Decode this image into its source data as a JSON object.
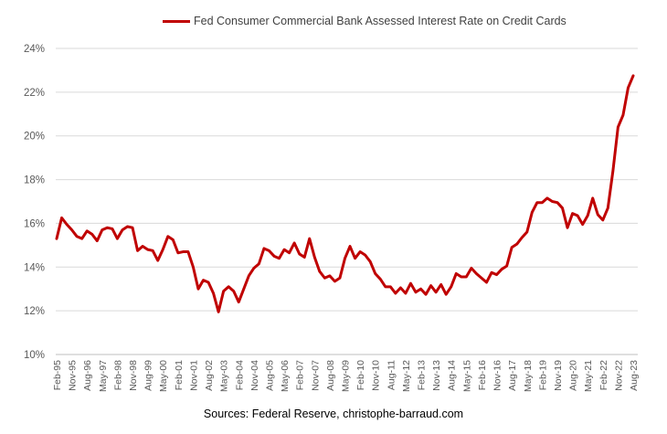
{
  "chart_data": {
    "type": "line",
    "title": "",
    "xlabel": "",
    "ylabel": "",
    "source": "Sources: Federal Reserve, christophe-barraud.com",
    "ylim": [
      10,
      24
    ],
    "y_ticks": [
      "10%",
      "12%",
      "14%",
      "16%",
      "18%",
      "20%",
      "22%",
      "24%"
    ],
    "y_tick_values": [
      10,
      12,
      14,
      16,
      18,
      20,
      22,
      24
    ],
    "x_tick_labels": [
      "Feb-95",
      "Nov-95",
      "Aug-96",
      "May-97",
      "Feb-98",
      "Nov-98",
      "Aug-99",
      "May-00",
      "Feb-01",
      "Nov-01",
      "Aug-02",
      "May-03",
      "Feb-04",
      "Nov-04",
      "Aug-05",
      "May-06",
      "Feb-07",
      "Nov-07",
      "Aug-08",
      "May-09",
      "Feb-10",
      "Nov-10",
      "Aug-11",
      "May-12",
      "Feb-13",
      "Nov-13",
      "Aug-14",
      "May-15",
      "Feb-16",
      "Nov-16",
      "Aug-17",
      "May-18",
      "Feb-19",
      "Nov-19",
      "Aug-20",
      "May-21",
      "Feb-22",
      "Nov-22",
      "Aug-23"
    ],
    "colors": {
      "series": "#C00000",
      "grid": "#d9d9d9",
      "axis": "#bfbfbf"
    },
    "series": [
      {
        "name": "Fed Consumer Commercial Bank Assessed Interest Rate on Credit Cards",
        "start": "Feb-95",
        "frequency": "quarterly",
        "values": [
          15.3,
          16.25,
          15.95,
          15.7,
          15.4,
          15.3,
          15.65,
          15.5,
          15.2,
          15.7,
          15.8,
          15.75,
          15.3,
          15.7,
          15.85,
          15.8,
          14.75,
          14.95,
          14.8,
          14.75,
          14.3,
          14.8,
          15.4,
          15.25,
          14.65,
          14.7,
          14.7,
          14.0,
          13.0,
          13.4,
          13.3,
          12.8,
          11.95,
          12.9,
          13.1,
          12.9,
          12.4,
          13.0,
          13.6,
          13.95,
          14.15,
          14.85,
          14.75,
          14.5,
          14.4,
          14.8,
          14.65,
          15.1,
          14.6,
          14.45,
          15.3,
          14.45,
          13.8,
          13.5,
          13.6,
          13.35,
          13.5,
          14.4,
          14.95,
          14.4,
          14.7,
          14.55,
          14.25,
          13.7,
          13.45,
          13.1,
          13.1,
          12.8,
          13.05,
          12.8,
          13.25,
          12.85,
          13.0,
          12.75,
          13.15,
          12.85,
          13.2,
          12.75,
          13.1,
          13.7,
          13.55,
          13.55,
          13.95,
          13.7,
          13.5,
          13.3,
          13.75,
          13.65,
          13.9,
          14.05,
          14.9,
          15.05,
          15.35,
          15.6,
          16.5,
          16.95,
          16.95,
          17.15,
          17.0,
          16.95,
          16.7,
          15.8,
          16.45,
          16.35,
          15.95,
          16.35,
          17.15,
          16.4,
          16.15,
          16.7,
          18.4,
          20.4,
          20.95,
          22.2,
          22.75
        ]
      }
    ]
  }
}
